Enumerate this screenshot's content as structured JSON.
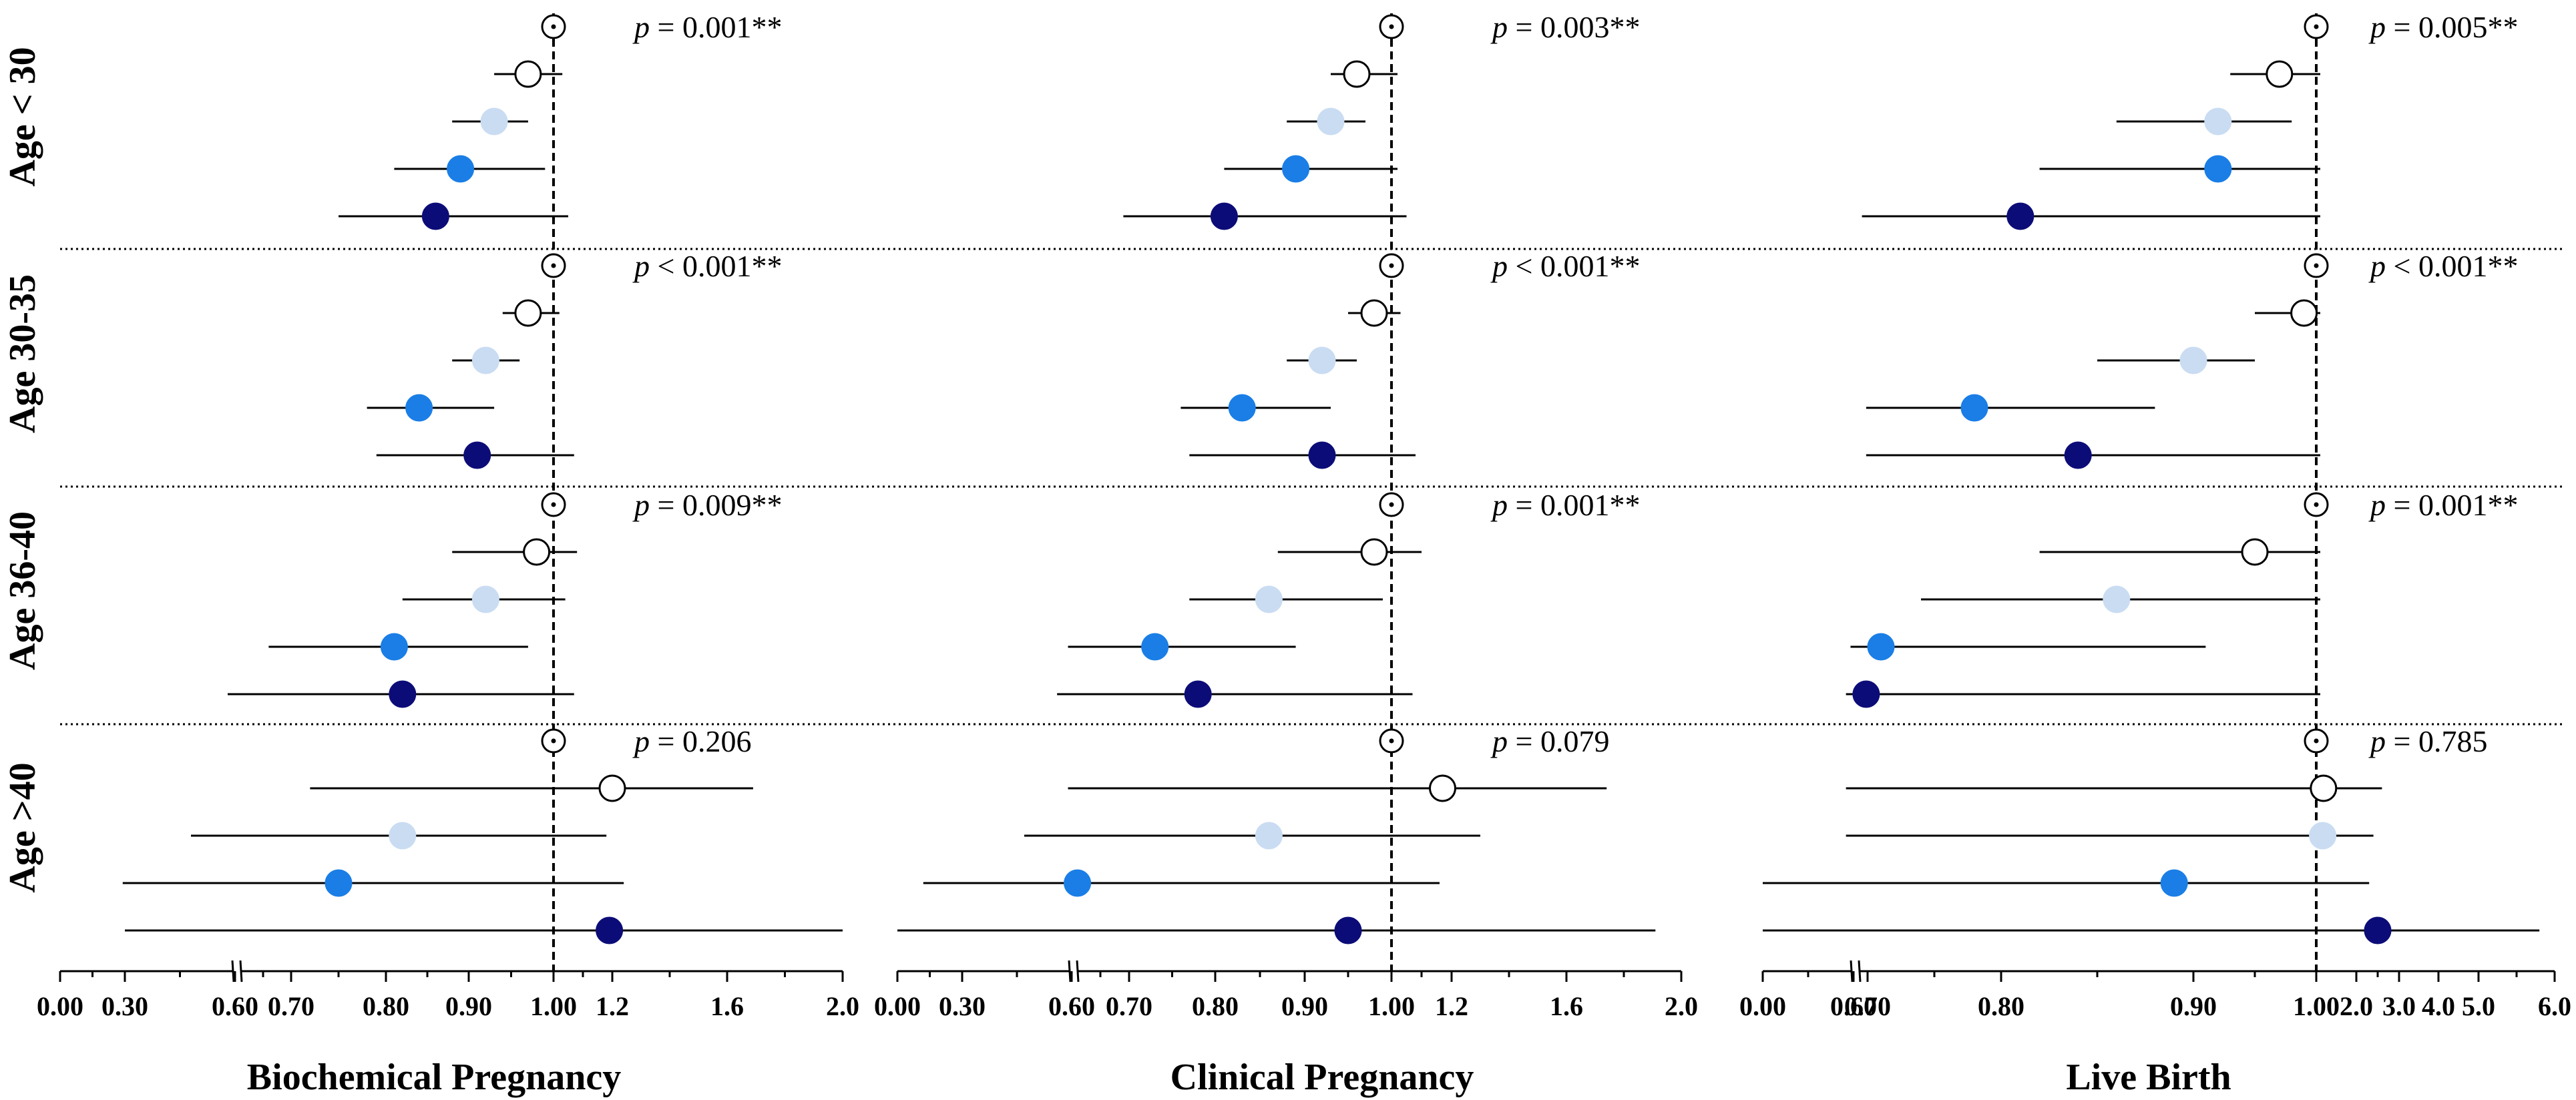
{
  "figure": {
    "row_labels": [
      "Age < 30",
      "Age 30-35",
      "Age 36-40",
      "Age >40"
    ],
    "series_colors": {
      "reference": "#ffffff",
      "level1": "#ffffff",
      "level2": "#c9dcf2",
      "level3": "#1a7ee6",
      "level4": "#0c0c78"
    }
  },
  "chart_data": [
    {
      "type": "forest",
      "title": "Biochemical Pregnancy",
      "reference_value": 1.0,
      "tick_labels": [
        "0.00",
        "0.30",
        "0.60",
        "0.70",
        "0.80",
        "0.90",
        "1.00",
        "1.2",
        "1.6",
        "2.0"
      ],
      "rows": [
        {
          "age_group": "Age < 30",
          "p_value": "p = 0.001**",
          "p_prefix": "p",
          "p_rest": " = 0.001**",
          "points": [
            {
              "series": "reference",
              "est": 1.0,
              "low": null,
              "high": null
            },
            {
              "series": "level1",
              "est": 0.97,
              "low": 0.93,
              "high": 1.03
            },
            {
              "series": "level2",
              "est": 0.93,
              "low": 0.88,
              "high": 0.97
            },
            {
              "series": "level3",
              "est": 0.89,
              "low": 0.81,
              "high": 0.99
            },
            {
              "series": "level4",
              "est": 0.86,
              "low": 0.75,
              "high": 1.05
            }
          ]
        },
        {
          "age_group": "Age 30-35",
          "p_value": "p < 0.001**",
          "p_prefix": "p",
          "p_rest": " < 0.001**",
          "points": [
            {
              "series": "reference",
              "est": 1.0,
              "low": null,
              "high": null
            },
            {
              "series": "level1",
              "est": 0.97,
              "low": 0.94,
              "high": 1.02
            },
            {
              "series": "level2",
              "est": 0.92,
              "low": 0.88,
              "high": 0.96
            },
            {
              "series": "level3",
              "est": 0.84,
              "low": 0.78,
              "high": 0.93
            },
            {
              "series": "level4",
              "est": 0.91,
              "low": 0.79,
              "high": 1.07
            }
          ]
        },
        {
          "age_group": "Age 36-40",
          "p_value": "p = 0.009**",
          "p_prefix": "p",
          "p_rest": " = 0.009**",
          "points": [
            {
              "series": "reference",
              "est": 1.0,
              "low": null,
              "high": null
            },
            {
              "series": "level1",
              "est": 0.98,
              "low": 0.88,
              "high": 1.08
            },
            {
              "series": "level2",
              "est": 0.92,
              "low": 0.82,
              "high": 1.04
            },
            {
              "series": "level3",
              "est": 0.81,
              "low": 0.66,
              "high": 0.97
            },
            {
              "series": "level4",
              "est": 0.82,
              "low": 0.58,
              "high": 1.07
            }
          ]
        },
        {
          "age_group": "Age >40",
          "p_value": "p = 0.206",
          "p_prefix": "p",
          "p_rest": " = 0.206",
          "points": [
            {
              "series": "reference",
              "est": 1.0,
              "low": null,
              "high": null
            },
            {
              "series": "level1",
              "est": 1.2,
              "low": 0.72,
              "high": 1.69
            },
            {
              "series": "level2",
              "est": 0.82,
              "low": 0.48,
              "high": 1.18
            },
            {
              "series": "level3",
              "est": 0.75,
              "low": 0.29,
              "high": 1.24
            },
            {
              "series": "level4",
              "est": 1.19,
              "low": 0.3,
              "high": 2.0
            }
          ]
        }
      ]
    },
    {
      "type": "forest",
      "title": "Clinical Pregnancy",
      "reference_value": 1.0,
      "tick_labels": [
        "0.00",
        "0.30",
        "0.60",
        "0.70",
        "0.80",
        "0.90",
        "1.00",
        "1.2",
        "1.6",
        "2.0"
      ],
      "rows": [
        {
          "age_group": "Age < 30",
          "p_value": "p = 0.003**",
          "p_prefix": "p",
          "p_rest": " = 0.003**",
          "points": [
            {
              "series": "reference",
              "est": 1.0,
              "low": null,
              "high": null
            },
            {
              "series": "level1",
              "est": 0.96,
              "low": 0.93,
              "high": 1.02
            },
            {
              "series": "level2",
              "est": 0.93,
              "low": 0.88,
              "high": 0.97
            },
            {
              "series": "level3",
              "est": 0.89,
              "low": 0.81,
              "high": 1.02
            },
            {
              "series": "level4",
              "est": 0.81,
              "low": 0.69,
              "high": 1.05
            }
          ]
        },
        {
          "age_group": "Age 30-35",
          "p_value": "p < 0.001**",
          "p_prefix": "p",
          "p_rest": " < 0.001**",
          "points": [
            {
              "series": "reference",
              "est": 1.0,
              "low": null,
              "high": null
            },
            {
              "series": "level1",
              "est": 0.98,
              "low": 0.95,
              "high": 1.03
            },
            {
              "series": "level2",
              "est": 0.92,
              "low": 0.88,
              "high": 0.96
            },
            {
              "series": "level3",
              "est": 0.83,
              "low": 0.76,
              "high": 0.93
            },
            {
              "series": "level4",
              "est": 0.92,
              "low": 0.77,
              "high": 1.08
            }
          ]
        },
        {
          "age_group": "Age 36-40",
          "p_value": "p = 0.001**",
          "p_prefix": "p",
          "p_rest": " = 0.001**",
          "points": [
            {
              "series": "reference",
              "est": 1.0,
              "low": null,
              "high": null
            },
            {
              "series": "level1",
              "est": 0.98,
              "low": 0.87,
              "high": 1.1
            },
            {
              "series": "level2",
              "est": 0.86,
              "low": 0.77,
              "high": 0.99
            },
            {
              "series": "level3",
              "est": 0.73,
              "low": 0.59,
              "high": 0.89
            },
            {
              "series": "level4",
              "est": 0.78,
              "low": 0.56,
              "high": 1.07
            }
          ]
        },
        {
          "age_group": "Age >40",
          "p_value": "p = 0.079",
          "p_prefix": "p",
          "p_rest": " = 0.079",
          "points": [
            {
              "series": "reference",
              "est": 1.0,
              "low": null,
              "high": null
            },
            {
              "series": "level1",
              "est": 1.17,
              "low": 0.59,
              "high": 1.74
            },
            {
              "series": "level2",
              "est": 0.86,
              "low": 0.47,
              "high": 1.3
            },
            {
              "series": "level3",
              "est": 0.61,
              "low": 0.12,
              "high": 1.16
            },
            {
              "series": "level4",
              "est": 0.95,
              "low": 0.0,
              "high": 1.91
            }
          ]
        }
      ]
    },
    {
      "type": "forest",
      "title": "Live Birth",
      "reference_value": 1.0,
      "tick_labels": [
        "0.00",
        "0.60",
        "0.70",
        "0.80",
        "0.90",
        "1.00",
        "2.0",
        "3.0",
        "4.0",
        "5.0",
        "6.0"
      ],
      "rows": [
        {
          "age_group": "Age < 30",
          "p_value": "p = 0.005**",
          "p_prefix": "p",
          "p_rest": " = 0.005**",
          "points": [
            {
              "series": "reference",
              "est": 1.0,
              "low": null,
              "high": null
            },
            {
              "series": "level1",
              "est": 0.97,
              "low": 0.93,
              "high": 1.1
            },
            {
              "series": "level2",
              "est": 0.92,
              "low": 0.86,
              "high": 0.98
            },
            {
              "series": "level3",
              "est": 0.92,
              "low": 0.82,
              "high": 1.1
            },
            {
              "series": "level4",
              "est": 0.81,
              "low": 0.66,
              "high": 1.1
            }
          ]
        },
        {
          "age_group": "Age 30-35",
          "p_value": "p < 0.001**",
          "p_prefix": "p",
          "p_rest": " < 0.001**",
          "points": [
            {
              "series": "reference",
              "est": 1.0,
              "low": null,
              "high": null
            },
            {
              "series": "level1",
              "est": 0.99,
              "low": 0.95,
              "high": 1.1
            },
            {
              "series": "level2",
              "est": 0.9,
              "low": 0.85,
              "high": 0.95
            },
            {
              "series": "level3",
              "est": 0.78,
              "low": 0.69,
              "high": 0.88
            },
            {
              "series": "level4",
              "est": 0.84,
              "low": 0.69,
              "high": 1.1
            }
          ]
        },
        {
          "age_group": "Age 36-40",
          "p_value": "p = 0.001**",
          "p_prefix": "p",
          "p_rest": " = 0.001**",
          "points": [
            {
              "series": "reference",
              "est": 1.0,
              "low": null,
              "high": null
            },
            {
              "series": "level1",
              "est": 0.95,
              "low": 0.82,
              "high": 1.1
            },
            {
              "series": "level2",
              "est": 0.86,
              "low": 0.74,
              "high": 1.1
            },
            {
              "series": "level3",
              "est": 0.71,
              "low": 0.58,
              "high": 0.91
            },
            {
              "series": "level4",
              "est": 0.69,
              "low": 0.55,
              "high": 1.1
            }
          ]
        },
        {
          "age_group": "Age >40",
          "p_value": "p = 0.785",
          "p_prefix": "p",
          "p_rest": " = 0.785",
          "points": [
            {
              "series": "reference",
              "est": 1.0,
              "low": null,
              "high": null
            },
            {
              "series": "level1",
              "est": 1.18,
              "low": 0.55,
              "high": 2.6
            },
            {
              "series": "level2",
              "est": 1.16,
              "low": 0.55,
              "high": 2.4
            },
            {
              "series": "level3",
              "est": 0.89,
              "low": 0.0,
              "high": 2.3
            },
            {
              "series": "level4",
              "est": 2.5,
              "low": 0.0,
              "high": 5.8
            }
          ]
        }
      ]
    }
  ]
}
